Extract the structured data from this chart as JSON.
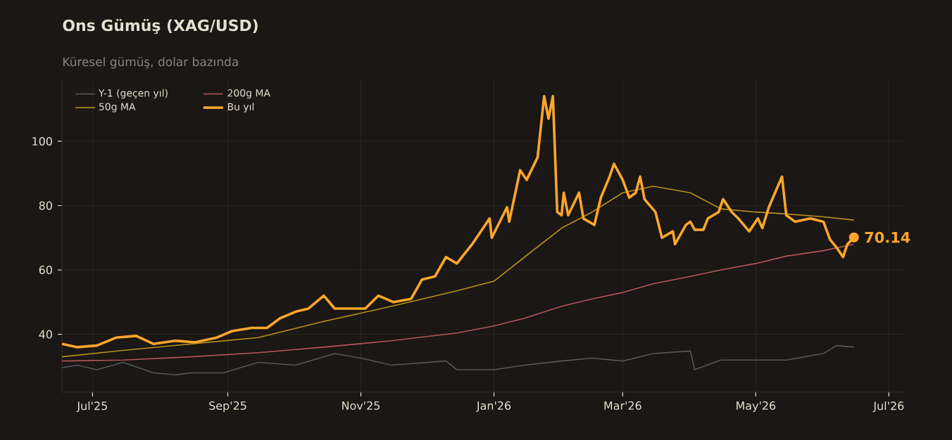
{
  "chart_data": {
    "type": "line",
    "title": "Ons Gümüş (XAG/USD)",
    "subtitle": "Küresel gümüş, dolar bazında",
    "xlim": [
      "2025-06-17",
      "2026-07-08"
    ],
    "ylim": [
      22,
      119
    ],
    "xticks": [
      {
        "value": "2025-07-01",
        "label": "Jul'25"
      },
      {
        "value": "2025-09-01",
        "label": "Sep'25"
      },
      {
        "value": "2025-11-01",
        "label": "Nov'25"
      },
      {
        "value": "2026-01-01",
        "label": "Jan'26"
      },
      {
        "value": "2026-03-01",
        "label": "Mar'26"
      },
      {
        "value": "2026-05-01",
        "label": "May'26"
      },
      {
        "value": "2026-07-01",
        "label": "Jul'26"
      }
    ],
    "yticks": [
      40,
      60,
      80,
      100
    ],
    "grid": true,
    "legend": "top left",
    "series": [
      {
        "name": "Y-1 (geçen yıl)",
        "color": "#55575c",
        "x": [
          "2025-06-17",
          "2025-06-24",
          "2025-07-03",
          "2025-07-15",
          "2025-07-29",
          "2025-08-08",
          "2025-08-15",
          "2025-08-30",
          "2025-09-15",
          "2025-10-02",
          "2025-10-20",
          "2025-11-01",
          "2025-11-15",
          "2025-12-10",
          "2025-12-15",
          "2026-01-01",
          "2026-01-15",
          "2026-02-01",
          "2026-02-15",
          "2026-03-01",
          "2026-03-15",
          "2026-04-01",
          "2026-04-03",
          "2026-04-15",
          "2026-05-01",
          "2026-05-15",
          "2026-06-01",
          "2026-06-07",
          "2026-06-15"
        ],
        "values": [
          29.6,
          30.4,
          29,
          31.3,
          28,
          27.4,
          28,
          28,
          31.3,
          30.4,
          34,
          32.6,
          30.4,
          31.7,
          29,
          29,
          30.4,
          31.7,
          32.6,
          31.7,
          34,
          34.8,
          29,
          32,
          32,
          32,
          34,
          36.5,
          36
        ]
      },
      {
        "name": "200g MA",
        "color": "#b5545a",
        "x": [
          "2025-06-17",
          "2025-07-15",
          "2025-08-15",
          "2025-09-15",
          "2025-10-15",
          "2025-11-15",
          "2025-12-15",
          "2026-01-01",
          "2026-01-15",
          "2026-02-01",
          "2026-02-15",
          "2026-03-01",
          "2026-03-15",
          "2026-04-01",
          "2026-04-15",
          "2026-05-01",
          "2026-05-15",
          "2026-06-01",
          "2026-06-15"
        ],
        "values": [
          31.7,
          32,
          33,
          34.3,
          36,
          38,
          40.4,
          42.6,
          45,
          48.7,
          51,
          53,
          55.7,
          58,
          60,
          62,
          64.3,
          66,
          68
        ]
      },
      {
        "name": "50g MA",
        "color": "#b8901c",
        "x": [
          "2025-06-17",
          "2025-07-15",
          "2025-08-15",
          "2025-09-15",
          "2025-10-15",
          "2025-11-15",
          "2025-12-15",
          "2026-01-01",
          "2026-01-15",
          "2026-02-01",
          "2026-02-15",
          "2026-03-01",
          "2026-03-15",
          "2026-04-01",
          "2026-04-15",
          "2026-05-01",
          "2026-05-15",
          "2026-06-01",
          "2026-06-15"
        ],
        "values": [
          33,
          35,
          37,
          39,
          44,
          48.7,
          53.5,
          56.5,
          64,
          73,
          78,
          84,
          86,
          84,
          79,
          78,
          77.4,
          76.5,
          75.5
        ]
      },
      {
        "name": "Bu yıl",
        "color": "#ffa62b",
        "x": [
          "2025-06-17",
          "2025-06-24",
          "2025-07-03",
          "2025-07-12",
          "2025-07-21",
          "2025-07-29",
          "2025-08-08",
          "2025-08-17",
          "2025-08-27",
          "2025-09-03",
          "2025-09-12",
          "2025-09-19",
          "2025-09-25",
          "2025-10-02",
          "2025-10-08",
          "2025-10-15",
          "2025-10-20",
          "2025-10-28",
          "2025-11-03",
          "2025-11-09",
          "2025-11-16",
          "2025-11-24",
          "2025-11-29",
          "2025-12-05",
          "2025-12-10",
          "2025-12-15",
          "2025-12-22",
          "2025-12-28",
          "2025-12-30",
          "2025-12-31",
          "2026-01-07",
          "2026-01-08",
          "2026-01-13",
          "2026-01-16",
          "2026-01-21",
          "2026-01-24",
          "2026-01-26",
          "2026-01-28",
          "2026-01-30",
          "2026-02-01",
          "2026-02-02",
          "2026-02-04",
          "2026-02-09",
          "2026-02-11",
          "2026-02-16",
          "2026-02-19",
          "2026-02-23",
          "2026-02-25",
          "2026-03-01",
          "2026-03-04",
          "2026-03-07",
          "2026-03-09",
          "2026-03-11",
          "2026-03-16",
          "2026-03-19",
          "2026-03-24",
          "2026-03-25",
          "2026-03-30",
          "2026-04-01",
          "2026-04-03",
          "2026-04-07",
          "2026-04-09",
          "2026-04-14",
          "2026-04-16",
          "2026-04-20",
          "2026-04-23",
          "2026-04-28",
          "2026-05-02",
          "2026-05-04",
          "2026-05-07",
          "2026-05-13",
          "2026-05-15",
          "2026-05-19",
          "2026-05-26",
          "2026-06-01",
          "2026-06-04",
          "2026-06-07",
          "2026-06-10",
          "2026-06-12",
          "2026-06-15"
        ],
        "values": [
          37,
          36,
          36.5,
          39,
          39.5,
          37,
          38,
          37.5,
          39,
          41,
          42,
          42,
          45,
          47,
          48,
          52,
          48,
          48,
          48,
          52,
          50,
          51,
          57,
          58,
          64,
          62,
          68,
          74,
          76,
          70,
          79.5,
          75,
          91,
          88,
          95,
          114,
          107,
          114,
          78,
          77,
          84,
          77,
          84,
          76,
          74,
          82.5,
          89,
          93,
          88,
          82.5,
          84,
          89,
          82,
          78,
          70,
          72,
          68,
          74,
          75,
          72.5,
          72.5,
          76,
          78,
          82,
          78,
          76,
          72,
          76,
          73,
          79.5,
          89,
          77,
          75,
          76,
          75,
          69.5,
          67,
          64,
          68,
          70.14
        ]
      }
    ],
    "annotations": [
      {
        "text": "70.14",
        "x": "2026-06-15",
        "y": 70.14
      }
    ]
  }
}
